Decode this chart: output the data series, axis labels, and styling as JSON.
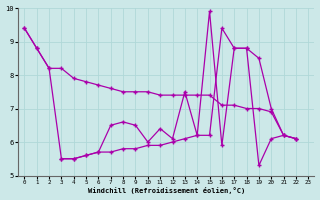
{
  "xlabel": "Windchill (Refroidissement éolien,°C)",
  "xlim": [
    -0.5,
    23.5
  ],
  "ylim": [
    5,
    10
  ],
  "xticks": [
    0,
    1,
    2,
    3,
    4,
    5,
    6,
    7,
    8,
    9,
    10,
    11,
    12,
    13,
    14,
    15,
    16,
    17,
    18,
    19,
    20,
    21,
    22,
    23
  ],
  "yticks": [
    5,
    6,
    7,
    8,
    9,
    10
  ],
  "background_color": "#cce8e8",
  "line_color": "#aa00aa",
  "grid_color": "#b0d8d8",
  "line1_x": [
    0,
    1,
    2,
    3,
    4,
    5,
    6,
    7,
    8,
    9,
    10,
    11,
    12,
    13,
    14,
    15,
    16,
    17,
    18,
    19,
    20,
    21,
    22
  ],
  "line1_y": [
    9.4,
    8.8,
    8.2,
    8.2,
    7.9,
    7.8,
    7.7,
    7.6,
    7.5,
    7.5,
    7.5,
    7.4,
    7.4,
    7.4,
    7.4,
    7.4,
    7.1,
    7.1,
    7.0,
    7.0,
    6.9,
    6.2,
    6.1
  ],
  "line2_x": [
    0,
    1,
    2,
    3,
    4,
    5,
    6,
    7,
    8,
    9,
    10,
    11,
    12,
    13,
    14,
    15,
    16,
    17,
    18,
    19,
    20,
    21,
    22
  ],
  "line2_y": [
    9.4,
    8.8,
    8.2,
    5.5,
    5.5,
    5.6,
    5.7,
    6.5,
    6.6,
    6.5,
    6.0,
    6.4,
    6.1,
    7.5,
    6.2,
    9.9,
    5.9,
    8.8,
    8.8,
    5.3,
    6.1,
    6.2,
    6.1
  ],
  "line3_x": [
    3,
    4,
    5,
    6,
    7,
    8,
    9,
    10,
    11,
    12,
    13,
    14,
    15,
    16,
    17,
    18,
    19,
    20,
    21,
    22
  ],
  "line3_y": [
    5.5,
    5.5,
    5.6,
    5.7,
    5.7,
    5.8,
    5.8,
    5.9,
    5.9,
    6.0,
    6.1,
    6.2,
    6.2,
    9.4,
    8.8,
    8.8,
    8.5,
    7.0,
    6.2,
    6.1
  ]
}
